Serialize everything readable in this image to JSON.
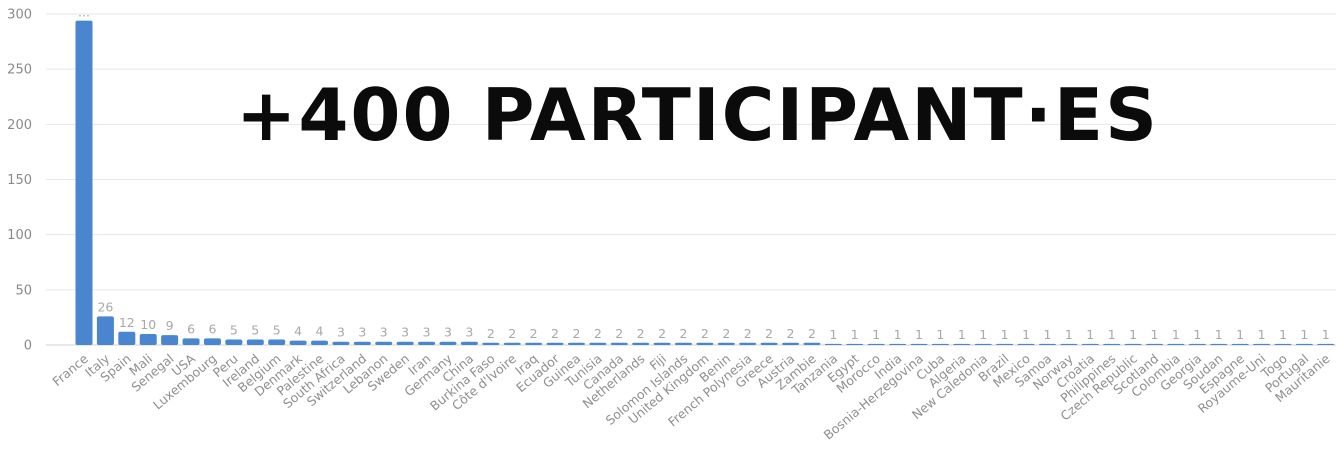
{
  "headline": "+400 PARTICIPANT·ES",
  "chart_data": {
    "type": "bar",
    "categories": [
      "France",
      "Italy",
      "Spain",
      "Mali",
      "Senegal",
      "USA",
      "Luxembourg",
      "Peru",
      "Ireland",
      "Belgium",
      "Denmark",
      "Palestine",
      "South Africa",
      "Switzerland",
      "Lebanon",
      "Sweden",
      "Iran",
      "Germany",
      "China",
      "Burkina Faso",
      "Côte d'Ivoire",
      "Iraq",
      "Ecuador",
      "Guinea",
      "Tunisia",
      "Canada",
      "Netherlands",
      "Fiji",
      "Solomon Islands",
      "United Kingdom",
      "Benin",
      "French Polynesia",
      "Greece",
      "Austria",
      "Zambie",
      "Tanzania",
      "Egypt",
      "Morocco",
      "India",
      "Bosnia-Herzegovina",
      "Cuba",
      "Algeria",
      "New Caledonia",
      "Brazil",
      "Mexico",
      "Samoa",
      "Norway",
      "Croatia",
      "Philippines",
      "Czech Republic",
      "Scotland",
      "Colombia",
      "Georgia",
      "Soudan",
      "Espagne",
      "Royaume-Uni",
      "Togo",
      "Portugal",
      "Mauritanie"
    ],
    "values": [
      294,
      26,
      12,
      10,
      9,
      6,
      6,
      5,
      5,
      5,
      4,
      4,
      3,
      3,
      3,
      3,
      3,
      3,
      3,
      2,
      2,
      2,
      2,
      2,
      2,
      2,
      2,
      2,
      2,
      2,
      2,
      2,
      2,
      2,
      2,
      1,
      1,
      1,
      1,
      1,
      1,
      1,
      1,
      1,
      1,
      1,
      1,
      1,
      1,
      1,
      1,
      1,
      1,
      1,
      1,
      1,
      1,
      1,
      1
    ],
    "data_labels": [
      "...",
      "26",
      "12",
      "10",
      "9",
      "6",
      "6",
      "5",
      "5",
      "5",
      "4",
      "4",
      "3",
      "3",
      "3",
      "3",
      "3",
      "3",
      "3",
      "2",
      "2",
      "2",
      "2",
      "2",
      "2",
      "2",
      "2",
      "2",
      "2",
      "2",
      "2",
      "2",
      "2",
      "2",
      "2",
      "1",
      "1",
      "1",
      "1",
      "1",
      "1",
      "1",
      "1",
      "1",
      "1",
      "1",
      "1",
      "1",
      "1",
      "1",
      "1",
      "1",
      "1",
      "1",
      "1",
      "1",
      "1",
      "1",
      "1"
    ],
    "y_ticks": [
      "0",
      "50",
      "100",
      "150",
      "200",
      "250",
      "300"
    ],
    "ylim": [
      0,
      300
    ],
    "grid": true,
    "bar_color": "#4a86d0",
    "title": "",
    "xlabel": "",
    "ylabel": ""
  }
}
